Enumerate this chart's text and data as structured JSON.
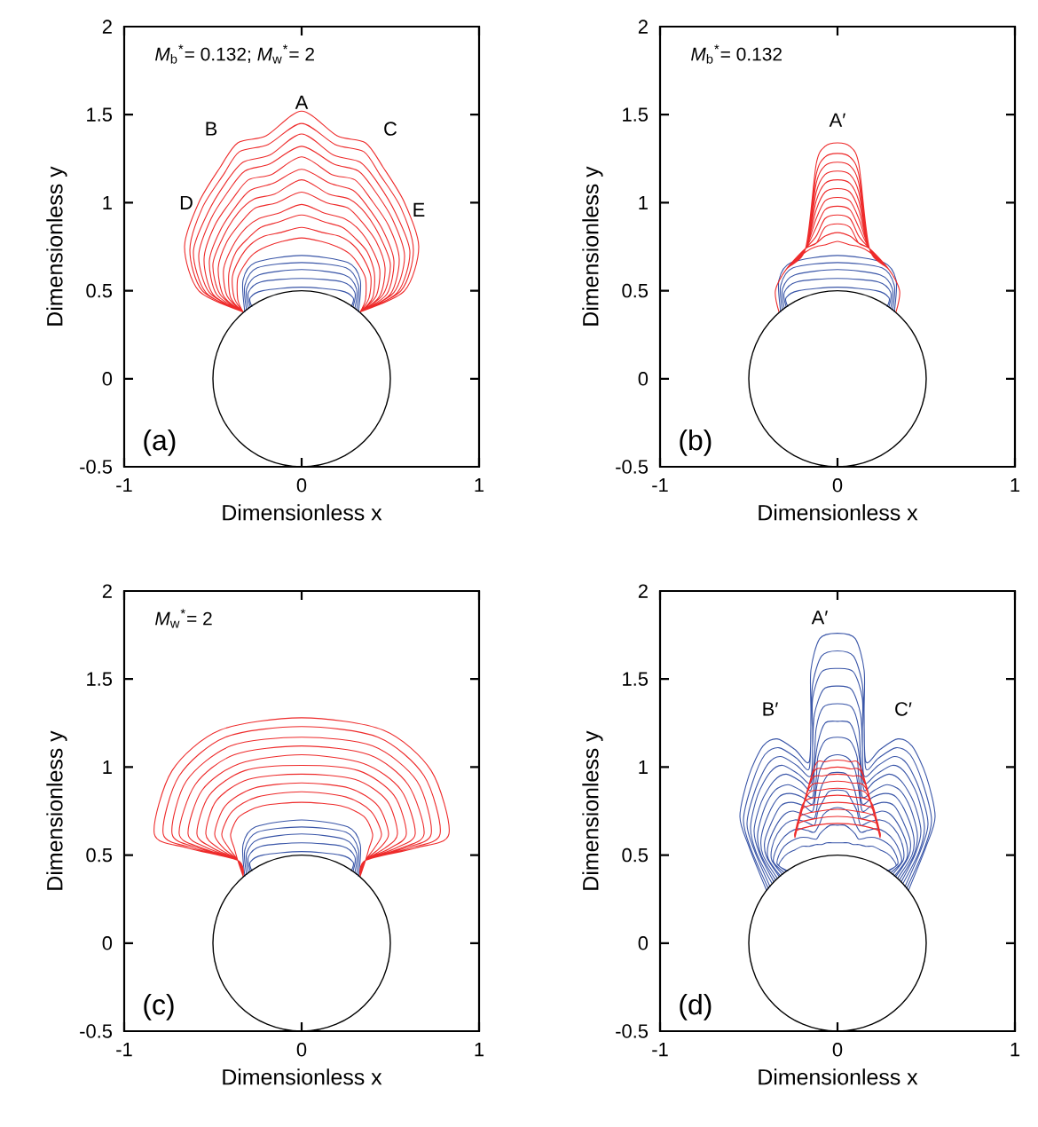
{
  "chart_data": [
    {
      "type": "line",
      "xlabel": "Dimensionless x",
      "ylabel": "Dimensionless y",
      "xlim": [
        -1,
        1
      ],
      "ylim": [
        -0.5,
        2
      ],
      "xticks": [
        -1,
        0,
        1
      ],
      "yticks": [
        -0.5,
        0,
        0.5,
        1,
        1.5,
        2
      ],
      "annotations": [
        "*M*$_{b}$$^{*}$= 0.132;  *M*$_{w}$$^{*}$= 2",
        "A",
        "B",
        "C",
        "D",
        "E",
        "(a)"
      ],
      "series": [
        {
          "color": "#3a56a8",
          "x": [
            -0.28,
            -0.29,
            -0.22,
            0,
            0.22,
            0.29,
            0.28,
            null,
            -0.29,
            -0.3,
            -0.23,
            0,
            0.23,
            0.3,
            0.29,
            null,
            -0.3,
            -0.31,
            -0.24,
            0,
            0.24,
            0.31,
            0.3,
            null,
            -0.31,
            -0.32,
            -0.25,
            0,
            0.25,
            0.32,
            0.31,
            null,
            -0.32,
            -0.33,
            -0.26,
            0,
            0.26,
            0.33,
            0.32
          ],
          "values": [
            0.41,
            0.46,
            0.5,
            0.52,
            0.5,
            0.46,
            0.41,
            null,
            0.41,
            0.49,
            0.55,
            0.57,
            0.55,
            0.49,
            0.41,
            null,
            0.4,
            0.51,
            0.59,
            0.62,
            0.59,
            0.51,
            0.4,
            null,
            0.39,
            0.53,
            0.63,
            0.66,
            0.63,
            0.53,
            0.39,
            null,
            0.38,
            0.56,
            0.66,
            0.7,
            0.66,
            0.56,
            0.38
          ]
        },
        {
          "color": "#ee2b2b",
          "x": [
            -0.33,
            -0.36,
            -0.36,
            -0.32,
            -0.27,
            -0.2,
            -0.11,
            0,
            0.11,
            0.2,
            0.27,
            0.32,
            0.36,
            0.36,
            0.33,
            null,
            -0.33,
            -0.38,
            -0.39,
            -0.35,
            -0.29,
            -0.21,
            -0.12,
            0,
            0.12,
            0.21,
            0.29,
            0.35,
            0.39,
            0.38,
            0.33,
            null,
            -0.33,
            -0.4,
            -0.41,
            -0.37,
            -0.3,
            -0.23,
            -0.13,
            0,
            0.13,
            0.23,
            0.3,
            0.37,
            0.41,
            0.4,
            0.33,
            null,
            -0.33,
            -0.42,
            -0.44,
            -0.39,
            -0.32,
            -0.24,
            -0.13,
            0,
            0.13,
            0.24,
            0.32,
            0.39,
            0.44,
            0.42,
            0.33,
            null,
            -0.33,
            -0.44,
            -0.47,
            -0.42,
            -0.34,
            -0.26,
            -0.14,
            0,
            0.14,
            0.26,
            0.34,
            0.42,
            0.47,
            0.44,
            0.33,
            null,
            -0.33,
            -0.46,
            -0.5,
            -0.44,
            -0.36,
            -0.27,
            -0.15,
            0,
            0.15,
            0.27,
            0.36,
            0.44,
            0.5,
            0.46,
            0.33,
            null,
            -0.33,
            -0.48,
            -0.52,
            -0.46,
            -0.37,
            -0.29,
            -0.16,
            0,
            0.16,
            0.29,
            0.37,
            0.46,
            0.52,
            0.48,
            0.33,
            null,
            -0.33,
            -0.5,
            -0.55,
            -0.49,
            -0.39,
            -0.3,
            -0.17,
            0,
            0.17,
            0.3,
            0.39,
            0.49,
            0.55,
            0.5,
            0.33,
            null,
            -0.33,
            -0.52,
            -0.58,
            -0.51,
            -0.41,
            -0.32,
            -0.18,
            0,
            0.18,
            0.32,
            0.41,
            0.51,
            0.58,
            0.52,
            0.33,
            null,
            -0.33,
            -0.54,
            -0.61,
            -0.53,
            -0.43,
            -0.33,
            -0.18,
            0,
            0.18,
            0.33,
            0.43,
            0.53,
            0.61,
            0.54,
            0.33,
            null,
            -0.33,
            -0.56,
            -0.63,
            -0.56,
            -0.44,
            -0.35,
            -0.19,
            0,
            0.19,
            0.35,
            0.44,
            0.56,
            0.63,
            0.56,
            0.33,
            null,
            -0.33,
            -0.58,
            -0.66,
            -0.58,
            -0.46,
            -0.36,
            -0.2,
            0,
            0.2,
            0.36,
            0.46,
            0.58,
            0.66,
            0.58,
            0.33
          ],
          "values": [
            0.38,
            0.45,
            0.57,
            0.65,
            0.71,
            0.75,
            0.78,
            0.8,
            0.78,
            0.75,
            0.71,
            0.65,
            0.57,
            0.45,
            0.38,
            null,
            0.38,
            0.46,
            0.58,
            0.68,
            0.76,
            0.81,
            0.83,
            0.86,
            0.83,
            0.81,
            0.76,
            0.68,
            0.58,
            0.46,
            0.38,
            null,
            0.38,
            0.46,
            0.6,
            0.72,
            0.8,
            0.86,
            0.89,
            0.93,
            0.89,
            0.86,
            0.8,
            0.72,
            0.6,
            0.46,
            0.38,
            null,
            0.38,
            0.47,
            0.62,
            0.75,
            0.85,
            0.91,
            0.94,
            0.99,
            0.94,
            0.91,
            0.85,
            0.75,
            0.62,
            0.47,
            0.38,
            null,
            0.38,
            0.47,
            0.63,
            0.78,
            0.89,
            0.97,
            1.0,
            1.06,
            1.0,
            0.97,
            0.89,
            0.78,
            0.63,
            0.47,
            0.38,
            null,
            0.38,
            0.48,
            0.65,
            0.81,
            0.94,
            1.02,
            1.05,
            1.13,
            1.05,
            1.02,
            0.94,
            0.81,
            0.65,
            0.48,
            0.38,
            null,
            0.38,
            0.48,
            0.67,
            0.84,
            0.98,
            1.07,
            1.11,
            1.19,
            1.11,
            1.07,
            0.98,
            0.84,
            0.67,
            0.48,
            0.38,
            null,
            0.38,
            0.48,
            0.68,
            0.87,
            1.02,
            1.13,
            1.16,
            1.26,
            1.16,
            1.13,
            1.02,
            0.87,
            0.68,
            0.48,
            0.38,
            null,
            0.38,
            0.49,
            0.7,
            0.91,
            1.07,
            1.18,
            1.22,
            1.32,
            1.22,
            1.18,
            1.07,
            0.91,
            0.7,
            0.49,
            0.38,
            null,
            0.38,
            0.49,
            0.72,
            0.94,
            1.11,
            1.23,
            1.27,
            1.39,
            1.27,
            1.23,
            1.11,
            0.94,
            0.72,
            0.49,
            0.38,
            null,
            0.38,
            0.5,
            0.73,
            0.97,
            1.16,
            1.29,
            1.33,
            1.45,
            1.33,
            1.29,
            1.16,
            0.97,
            0.73,
            0.5,
            0.38,
            null,
            0.38,
            0.5,
            0.75,
            1.0,
            1.2,
            1.34,
            1.38,
            1.52,
            1.38,
            1.34,
            1.2,
            1.0,
            0.75,
            0.5,
            0.38
          ]
        }
      ]
    },
    {
      "type": "line",
      "xlabel": "Dimensionless x",
      "ylabel": "Dimensionless y",
      "xlim": [
        -1,
        1
      ],
      "ylim": [
        -0.5,
        2
      ],
      "xticks": [
        -1,
        0,
        1
      ],
      "yticks": [
        -0.5,
        0,
        0.5,
        1,
        1.5,
        2
      ],
      "annotations": [
        "*M*$_{b}$$^{*}$= 0.132",
        "A′",
        "(b)"
      ],
      "series": [
        {
          "color": "#3a56a8",
          "x": [
            -0.28,
            -0.29,
            -0.22,
            0,
            0.22,
            0.29,
            0.28,
            null,
            -0.29,
            -0.3,
            -0.23,
            0,
            0.23,
            0.3,
            0.29,
            null,
            -0.3,
            -0.31,
            -0.24,
            0,
            0.24,
            0.31,
            0.3,
            null,
            -0.31,
            -0.32,
            -0.25,
            0,
            0.25,
            0.32,
            0.31,
            null,
            -0.32,
            -0.33,
            -0.26,
            0,
            0.26,
            0.33,
            0.32
          ],
          "values": [
            0.41,
            0.46,
            0.5,
            0.52,
            0.5,
            0.46,
            0.41,
            null,
            0.41,
            0.49,
            0.55,
            0.57,
            0.55,
            0.49,
            0.41,
            null,
            0.4,
            0.51,
            0.59,
            0.62,
            0.59,
            0.51,
            0.4,
            null,
            0.39,
            0.53,
            0.63,
            0.66,
            0.63,
            0.53,
            0.39,
            null,
            0.38,
            0.56,
            0.66,
            0.7,
            0.66,
            0.56,
            0.38
          ]
        },
        {
          "color": "#ee2b2b",
          "x": [
            -0.33,
            -0.35,
            -0.29,
            -0.18,
            -0.12,
            -0.07,
            0,
            0.07,
            0.12,
            0.18,
            0.29,
            0.35,
            0.33,
            null,
            -0.33,
            -0.35,
            -0.29,
            -0.18,
            -0.12,
            -0.07,
            0,
            0.07,
            0.12,
            0.18,
            0.29,
            0.35,
            0.33,
            null,
            -0.33,
            -0.35,
            -0.29,
            -0.18,
            -0.12,
            -0.07,
            0,
            0.07,
            0.12,
            0.18,
            0.29,
            0.35,
            0.33,
            null,
            -0.33,
            -0.35,
            -0.29,
            -0.18,
            -0.12,
            -0.07,
            0,
            0.07,
            0.12,
            0.18,
            0.29,
            0.35,
            0.33,
            null,
            -0.33,
            -0.35,
            -0.29,
            -0.18,
            -0.12,
            -0.07,
            0,
            0.07,
            0.12,
            0.18,
            0.29,
            0.35,
            0.33,
            null,
            -0.33,
            -0.35,
            -0.29,
            -0.18,
            -0.12,
            -0.07,
            0,
            0.07,
            0.12,
            0.18,
            0.29,
            0.35,
            0.33,
            null,
            -0.33,
            -0.35,
            -0.29,
            -0.18,
            -0.12,
            -0.07,
            0,
            0.07,
            0.12,
            0.18,
            0.29,
            0.35,
            0.33,
            null,
            -0.33,
            -0.35,
            -0.29,
            -0.18,
            -0.12,
            -0.07,
            0,
            0.07,
            0.12,
            0.18,
            0.29,
            0.35,
            0.33,
            null,
            -0.33,
            -0.35,
            -0.29,
            -0.18,
            -0.12,
            -0.07,
            0,
            0.07,
            0.12,
            0.18,
            0.29,
            0.35,
            0.33,
            null,
            -0.33,
            -0.35,
            -0.29,
            -0.18,
            -0.12,
            -0.07,
            0,
            0.07,
            0.12,
            0.18,
            0.29,
            0.35,
            0.33,
            null,
            -0.33,
            -0.35,
            -0.29,
            -0.18,
            -0.12,
            -0.07,
            0,
            0.07,
            0.12,
            0.18,
            0.29,
            0.35,
            0.33,
            null,
            -0.33,
            -0.35,
            -0.29,
            -0.18,
            -0.12,
            -0.07,
            0,
            0.07,
            0.12,
            0.18,
            0.29,
            0.35,
            0.33
          ],
          "values": [
            0.38,
            0.5,
            0.62,
            0.72,
            0.75,
            0.76,
            0.78,
            0.76,
            0.75,
            0.72,
            0.62,
            0.5,
            0.38,
            null,
            0.38,
            0.5,
            0.62,
            0.74,
            0.77,
            0.81,
            0.83,
            0.81,
            0.77,
            0.74,
            0.62,
            0.5,
            0.38,
            null,
            0.38,
            0.5,
            0.62,
            0.74,
            0.77,
            0.86,
            0.88,
            0.86,
            0.77,
            0.74,
            0.62,
            0.5,
            0.38,
            null,
            0.38,
            0.5,
            0.62,
            0.74,
            0.81,
            0.91,
            0.93,
            0.91,
            0.81,
            0.74,
            0.62,
            0.5,
            0.38,
            null,
            0.38,
            0.5,
            0.62,
            0.74,
            0.86,
            0.96,
            0.98,
            0.96,
            0.86,
            0.74,
            0.62,
            0.5,
            0.38,
            null,
            0.38,
            0.5,
            0.62,
            0.74,
            0.91,
            1.01,
            1.03,
            1.01,
            0.91,
            0.74,
            0.62,
            0.5,
            0.38,
            null,
            0.38,
            0.5,
            0.62,
            0.74,
            0.96,
            1.06,
            1.08,
            1.06,
            0.96,
            0.74,
            0.62,
            0.5,
            0.38,
            null,
            0.38,
            0.5,
            0.62,
            0.74,
            1.01,
            1.11,
            1.13,
            1.11,
            1.01,
            0.74,
            0.62,
            0.5,
            0.38,
            null,
            0.38,
            0.5,
            0.62,
            0.74,
            1.06,
            1.16,
            1.18,
            1.16,
            1.06,
            0.74,
            0.62,
            0.5,
            0.38,
            null,
            0.38,
            0.5,
            0.62,
            0.74,
            1.11,
            1.21,
            1.23,
            1.21,
            1.11,
            0.74,
            0.62,
            0.5,
            0.38,
            null,
            0.38,
            0.5,
            0.62,
            0.74,
            1.16,
            1.26,
            1.28,
            1.26,
            1.16,
            0.74,
            0.62,
            0.5,
            0.38,
            null,
            0.38,
            0.5,
            0.62,
            0.74,
            1.22,
            1.32,
            1.34,
            1.32,
            1.22,
            0.74,
            0.62,
            0.5,
            0.38
          ]
        }
      ]
    },
    {
      "type": "line",
      "xlabel": "Dimensionless x",
      "ylabel": "Dimensionless y",
      "xlim": [
        -1,
        1
      ],
      "ylim": [
        -0.5,
        2
      ],
      "xticks": [
        -1,
        0,
        1
      ],
      "yticks": [
        -0.5,
        0,
        0.5,
        1,
        1.5,
        2
      ],
      "annotations": [
        "*M*$_{w}$$^{*}$= 2",
        "(c)"
      ],
      "series": [
        {
          "color": "#3a56a8",
          "x": [
            -0.28,
            -0.29,
            -0.22,
            0,
            0.22,
            0.29,
            0.28,
            null,
            -0.29,
            -0.3,
            -0.23,
            0,
            0.23,
            0.3,
            0.29,
            null,
            -0.3,
            -0.31,
            -0.24,
            0,
            0.24,
            0.31,
            0.3,
            null,
            -0.31,
            -0.32,
            -0.25,
            0,
            0.25,
            0.32,
            0.31,
            null,
            -0.32,
            -0.33,
            -0.26,
            0,
            0.26,
            0.33,
            0.32
          ],
          "values": [
            0.41,
            0.46,
            0.5,
            0.52,
            0.5,
            0.46,
            0.41,
            null,
            0.41,
            0.49,
            0.55,
            0.57,
            0.55,
            0.49,
            0.41,
            null,
            0.4,
            0.51,
            0.59,
            0.62,
            0.59,
            0.51,
            0.4,
            null,
            0.39,
            0.53,
            0.63,
            0.66,
            0.63,
            0.53,
            0.39,
            null,
            0.38,
            0.56,
            0.66,
            0.7,
            0.66,
            0.56,
            0.38
          ]
        },
        {
          "color": "#ee2b2b",
          "x": [
            -0.33,
            -0.36,
            -0.38,
            -0.4,
            -0.35,
            -0.22,
            0,
            0.22,
            0.35,
            0.4,
            0.38,
            0.36,
            0.33,
            null,
            -0.33,
            -0.36,
            -0.41,
            -0.45,
            -0.39,
            -0.25,
            0,
            0.25,
            0.39,
            0.45,
            0.41,
            0.36,
            0.33,
            null,
            -0.33,
            -0.36,
            -0.44,
            -0.49,
            -0.43,
            -0.27,
            0,
            0.27,
            0.43,
            0.49,
            0.44,
            0.36,
            0.33,
            null,
            -0.33,
            -0.36,
            -0.47,
            -0.54,
            -0.48,
            -0.3,
            0,
            0.3,
            0.48,
            0.54,
            0.47,
            0.36,
            0.33,
            null,
            -0.33,
            -0.36,
            -0.5,
            -0.59,
            -0.52,
            -0.32,
            0,
            0.32,
            0.52,
            0.59,
            0.5,
            0.36,
            0.33,
            null,
            -0.33,
            -0.36,
            -0.53,
            -0.64,
            -0.56,
            -0.35,
            0,
            0.35,
            0.56,
            0.64,
            0.53,
            0.36,
            0.33,
            null,
            -0.33,
            -0.36,
            -0.56,
            -0.69,
            -0.6,
            -0.38,
            0,
            0.38,
            0.6,
            0.69,
            0.56,
            0.36,
            0.33,
            null,
            -0.33,
            -0.36,
            -0.58,
            -0.73,
            -0.65,
            -0.4,
            0,
            0.4,
            0.65,
            0.73,
            0.58,
            0.36,
            0.33,
            null,
            -0.33,
            -0.36,
            -0.61,
            -0.78,
            -0.69,
            -0.43,
            0,
            0.43,
            0.69,
            0.78,
            0.61,
            0.36,
            0.33,
            null,
            -0.33,
            -0.36,
            -0.64,
            -0.83,
            -0.73,
            -0.46,
            0,
            0.46,
            0.73,
            0.83,
            0.64,
            0.36,
            0.33
          ],
          "values": [
            0.38,
            0.47,
            0.54,
            0.62,
            0.72,
            0.78,
            0.8,
            0.78,
            0.72,
            0.62,
            0.54,
            0.47,
            0.38,
            null,
            0.38,
            0.47,
            0.54,
            0.62,
            0.75,
            0.83,
            0.86,
            0.83,
            0.75,
            0.62,
            0.54,
            0.47,
            0.38,
            null,
            0.38,
            0.47,
            0.54,
            0.62,
            0.78,
            0.88,
            0.91,
            0.88,
            0.78,
            0.62,
            0.54,
            0.47,
            0.38,
            null,
            0.38,
            0.47,
            0.54,
            0.62,
            0.81,
            0.93,
            0.96,
            0.93,
            0.81,
            0.62,
            0.54,
            0.47,
            0.38,
            null,
            0.38,
            0.47,
            0.54,
            0.62,
            0.84,
            0.98,
            1.01,
            0.98,
            0.84,
            0.62,
            0.54,
            0.47,
            0.38,
            null,
            0.38,
            0.47,
            0.54,
            0.62,
            0.87,
            1.02,
            1.07,
            1.02,
            0.87,
            0.62,
            0.54,
            0.47,
            0.38,
            null,
            0.38,
            0.47,
            0.54,
            0.62,
            0.9,
            1.07,
            1.12,
            1.07,
            0.9,
            0.62,
            0.54,
            0.47,
            0.38,
            null,
            0.38,
            0.47,
            0.54,
            0.62,
            0.92,
            1.12,
            1.17,
            1.12,
            0.92,
            0.62,
            0.54,
            0.47,
            0.38,
            null,
            0.38,
            0.47,
            0.54,
            0.62,
            0.95,
            1.17,
            1.23,
            1.17,
            0.95,
            0.62,
            0.54,
            0.47,
            0.38,
            null,
            0.38,
            0.47,
            0.54,
            0.62,
            0.98,
            1.21,
            1.28,
            1.21,
            0.98,
            0.62,
            0.54,
            0.47,
            0.38
          ]
        }
      ]
    },
    {
      "type": "line",
      "xlabel": "Dimensionless x",
      "ylabel": "Dimensionless y",
      "xlim": [
        -1,
        1
      ],
      "ylim": [
        -0.5,
        2
      ],
      "xticks": [
        -1,
        0,
        1
      ],
      "yticks": [
        -0.5,
        0,
        0.5,
        1,
        1.5,
        2
      ],
      "annotations": [
        "A′",
        "B′",
        "C′",
        "(d)"
      ],
      "series": [
        {
          "color": "#3a56a8",
          "x": [
            -0.28,
            -0.33,
            -0.31,
            -0.28,
            -0.24,
            -0.2,
            -0.16,
            -0.12,
            -0.09,
            -0.06,
            -0.03,
            0,
            0.03,
            0.06,
            0.09,
            0.12,
            0.16,
            0.2,
            0.24,
            0.28,
            0.31,
            0.33,
            0.28,
            null,
            -0.29,
            -0.34,
            -0.33,
            -0.3,
            -0.26,
            -0.21,
            -0.17,
            -0.12,
            -0.1,
            -0.07,
            -0.04,
            0,
            0.04,
            0.07,
            0.1,
            0.12,
            0.17,
            0.21,
            0.26,
            0.3,
            0.33,
            0.34,
            0.29,
            null,
            -0.3,
            -0.36,
            -0.35,
            -0.32,
            -0.27,
            -0.22,
            -0.17,
            -0.13,
            -0.1,
            -0.08,
            -0.04,
            0,
            0.04,
            0.08,
            0.1,
            0.13,
            0.17,
            0.22,
            0.27,
            0.32,
            0.35,
            0.36,
            0.3,
            null,
            -0.31,
            -0.37,
            -0.37,
            -0.34,
            -0.29,
            -0.24,
            -0.18,
            -0.13,
            -0.11,
            -0.08,
            -0.05,
            0,
            0.05,
            0.08,
            0.11,
            0.13,
            0.18,
            0.24,
            0.29,
            0.34,
            0.37,
            0.37,
            0.31,
            null,
            -0.32,
            -0.39,
            -0.39,
            -0.35,
            -0.3,
            -0.25,
            -0.19,
            -0.13,
            -0.11,
            -0.09,
            -0.05,
            0,
            0.05,
            0.09,
            0.11,
            0.13,
            0.19,
            0.25,
            0.3,
            0.35,
            0.39,
            0.39,
            0.32,
            null,
            -0.33,
            -0.4,
            -0.41,
            -0.37,
            -0.32,
            -0.26,
            -0.19,
            -0.14,
            -0.12,
            -0.1,
            -0.06,
            0,
            0.06,
            0.1,
            0.12,
            0.14,
            0.19,
            0.26,
            0.32,
            0.37,
            0.41,
            0.4,
            0.33,
            null,
            -0.34,
            -0.42,
            -0.43,
            -0.39,
            -0.33,
            -0.27,
            -0.2,
            -0.14,
            -0.12,
            -0.11,
            -0.07,
            0,
            0.07,
            0.11,
            0.12,
            0.14,
            0.2,
            0.27,
            0.33,
            0.39,
            0.43,
            0.42,
            0.34,
            null,
            -0.35,
            -0.43,
            -0.45,
            -0.41,
            -0.35,
            -0.28,
            -0.21,
            -0.14,
            -0.13,
            -0.11,
            -0.07,
            0,
            0.07,
            0.11,
            0.13,
            0.14,
            0.21,
            0.28,
            0.35,
            0.41,
            0.45,
            0.43,
            0.35,
            null,
            -0.36,
            -0.44,
            -0.47,
            -0.43,
            -0.36,
            -0.29,
            -0.21,
            -0.15,
            -0.13,
            -0.12,
            -0.08,
            0,
            0.08,
            0.12,
            0.13,
            0.15,
            0.21,
            0.29,
            0.36,
            0.43,
            0.47,
            0.44,
            0.36,
            null,
            -0.37,
            -0.46,
            -0.49,
            -0.45,
            -0.38,
            -0.31,
            -0.22,
            -0.15,
            -0.14,
            -0.13,
            -0.08,
            0,
            0.08,
            0.13,
            0.14,
            0.15,
            0.22,
            0.31,
            0.38,
            0.45,
            0.49,
            0.46,
            0.37,
            null,
            -0.38,
            -0.47,
            -0.51,
            -0.46,
            -0.39,
            -0.32,
            -0.23,
            -0.15,
            -0.14,
            -0.14,
            -0.09,
            0,
            0.09,
            0.14,
            0.14,
            0.15,
            0.23,
            0.32,
            0.39,
            0.46,
            0.51,
            0.47,
            0.38,
            null,
            -0.39,
            -0.49,
            -0.53,
            -0.48,
            -0.41,
            -0.33,
            -0.23,
            -0.16,
            -0.15,
            -0.14,
            -0.09,
            0,
            0.09,
            0.14,
            0.15,
            0.16,
            0.23,
            0.33,
            0.41,
            0.48,
            0.53,
            0.49,
            0.39,
            null,
            -0.4,
            -0.5,
            -0.55,
            -0.5,
            -0.42,
            -0.34,
            -0.24,
            -0.16,
            -0.15,
            -0.15,
            -0.1,
            0,
            0.1,
            0.15,
            0.15,
            0.16,
            0.24,
            0.34,
            0.42,
            0.5,
            0.55,
            0.5,
            0.4
          ],
          "values": [
            0.41,
            0.44,
            0.48,
            0.51,
            0.53,
            0.55,
            0.55,
            0.56,
            0.56,
            0.57,
            0.57,
            0.57,
            0.57,
            0.57,
            0.56,
            0.56,
            0.55,
            0.55,
            0.53,
            0.51,
            0.48,
            0.44,
            0.41,
            null,
            0.41,
            0.45,
            0.5,
            0.55,
            0.58,
            0.6,
            0.6,
            0.59,
            0.62,
            0.65,
            0.67,
            0.67,
            0.67,
            0.65,
            0.62,
            0.59,
            0.6,
            0.6,
            0.58,
            0.55,
            0.5,
            0.45,
            0.41,
            null,
            0.4,
            0.46,
            0.52,
            0.58,
            0.63,
            0.65,
            0.64,
            0.63,
            0.68,
            0.73,
            0.76,
            0.77,
            0.76,
            0.73,
            0.68,
            0.63,
            0.64,
            0.65,
            0.63,
            0.58,
            0.52,
            0.46,
            0.4,
            null,
            0.39,
            0.47,
            0.54,
            0.62,
            0.68,
            0.7,
            0.69,
            0.67,
            0.75,
            0.81,
            0.86,
            0.87,
            0.86,
            0.81,
            0.75,
            0.67,
            0.69,
            0.7,
            0.68,
            0.62,
            0.54,
            0.47,
            0.39,
            null,
            0.38,
            0.48,
            0.56,
            0.66,
            0.73,
            0.75,
            0.73,
            0.71,
            0.81,
            0.89,
            0.96,
            0.97,
            0.96,
            0.89,
            0.81,
            0.71,
            0.73,
            0.75,
            0.73,
            0.66,
            0.56,
            0.48,
            0.38,
            null,
            0.38,
            0.49,
            0.58,
            0.69,
            0.78,
            0.8,
            0.78,
            0.75,
            0.87,
            0.98,
            1.05,
            1.07,
            1.05,
            0.98,
            0.87,
            0.75,
            0.78,
            0.8,
            0.78,
            0.69,
            0.58,
            0.49,
            0.38,
            null,
            0.37,
            0.5,
            0.6,
            0.73,
            0.83,
            0.85,
            0.83,
            0.79,
            0.93,
            1.06,
            1.15,
            1.17,
            1.15,
            1.06,
            0.93,
            0.79,
            0.83,
            0.85,
            0.83,
            0.73,
            0.6,
            0.5,
            0.37,
            null,
            0.36,
            0.5,
            0.62,
            0.77,
            0.87,
            0.9,
            0.87,
            0.83,
            0.99,
            1.14,
            1.25,
            1.26,
            1.25,
            1.14,
            0.99,
            0.83,
            0.87,
            0.9,
            0.87,
            0.77,
            0.62,
            0.5,
            0.36,
            null,
            0.35,
            0.51,
            0.64,
            0.8,
            0.92,
            0.96,
            0.92,
            0.87,
            1.05,
            1.22,
            1.34,
            1.36,
            1.34,
            1.22,
            1.05,
            0.87,
            0.92,
            0.96,
            0.92,
            0.8,
            0.64,
            0.51,
            0.35,
            null,
            0.34,
            0.52,
            0.66,
            0.84,
            0.97,
            1.01,
            0.96,
            0.91,
            1.12,
            1.3,
            1.44,
            1.46,
            1.44,
            1.3,
            1.12,
            0.91,
            0.96,
            1.01,
            0.97,
            0.84,
            0.66,
            0.52,
            0.34,
            null,
            0.32,
            0.53,
            0.68,
            0.88,
            1.02,
            1.06,
            1.01,
            0.95,
            1.18,
            1.39,
            1.54,
            1.56,
            1.54,
            1.39,
            1.18,
            0.95,
            1.01,
            1.06,
            1.02,
            0.88,
            0.68,
            0.53,
            0.32,
            null,
            0.31,
            0.54,
            0.7,
            0.91,
            1.07,
            1.11,
            1.05,
            0.99,
            1.24,
            1.47,
            1.63,
            1.66,
            1.63,
            1.47,
            1.24,
            0.99,
            1.05,
            1.11,
            1.07,
            0.91,
            0.7,
            0.54,
            0.31,
            null,
            0.3,
            0.55,
            0.72,
            0.95,
            1.12,
            1.16,
            1.1,
            1.03,
            1.3,
            1.55,
            1.73,
            1.76,
            1.73,
            1.55,
            1.3,
            1.03,
            1.1,
            1.16,
            1.12,
            0.95,
            0.72,
            0.55,
            0.3
          ]
        },
        {
          "color": "#ee2b2b",
          "x": [
            -0.24,
            -0.23,
            -0.12,
            0,
            0.12,
            0.23,
            0.24,
            null,
            -0.24,
            -0.22,
            -0.11,
            0,
            0.11,
            0.22,
            0.24,
            null,
            -0.24,
            -0.21,
            -0.1,
            0,
            0.1,
            0.21,
            0.24,
            null,
            -0.24,
            -0.2,
            -0.1,
            0,
            0.1,
            0.2,
            0.24,
            null,
            -0.24,
            -0.19,
            -0.09,
            0,
            0.09,
            0.19,
            0.24,
            null,
            -0.24,
            -0.17,
            -0.09,
            0,
            0.09,
            0.17,
            0.24,
            null,
            -0.24,
            -0.16,
            -0.08,
            0,
            0.08,
            0.16,
            0.24,
            null,
            -0.24,
            -0.15,
            -0.08,
            0,
            0.08,
            0.15,
            0.24,
            null,
            -0.24,
            -0.14,
            -0.07,
            0,
            0.07,
            0.14,
            0.24,
            null,
            -0.24,
            -0.13,
            -0.07,
            0,
            0.07,
            0.13,
            0.24
          ],
          "values": [
            0.6,
            0.64,
            0.67,
            0.68,
            0.67,
            0.64,
            0.6,
            null,
            0.6,
            0.68,
            0.71,
            0.72,
            0.71,
            0.68,
            0.6,
            null,
            0.6,
            0.72,
            0.75,
            0.76,
            0.75,
            0.72,
            0.6,
            null,
            0.6,
            0.76,
            0.79,
            0.8,
            0.79,
            0.76,
            0.6,
            null,
            0.6,
            0.8,
            0.83,
            0.84,
            0.83,
            0.8,
            0.6,
            null,
            0.6,
            0.84,
            0.87,
            0.88,
            0.87,
            0.84,
            0.6,
            null,
            0.6,
            0.88,
            0.91,
            0.92,
            0.91,
            0.88,
            0.6,
            null,
            0.6,
            0.92,
            0.95,
            0.96,
            0.95,
            0.92,
            0.6,
            null,
            0.6,
            0.96,
            0.99,
            1.0,
            0.99,
            0.96,
            0.6,
            null,
            0.6,
            1.0,
            1.03,
            1.04,
            1.03,
            1.0,
            0.6
          ]
        }
      ]
    }
  ]
}
